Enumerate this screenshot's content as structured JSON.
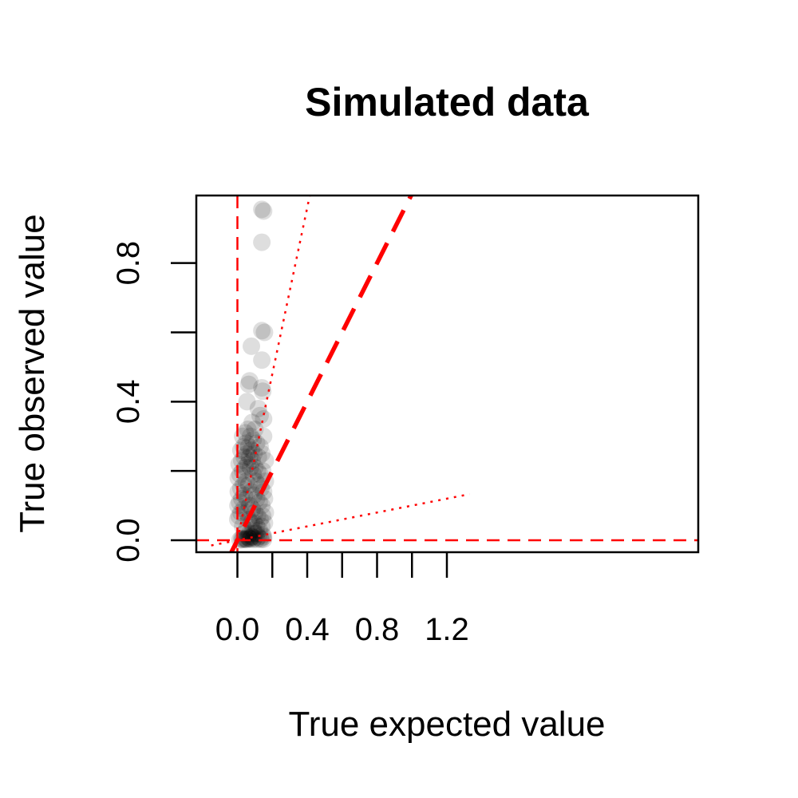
{
  "chart_data": {
    "type": "scatter",
    "title": "Simulated data",
    "xlabel": "True expected value",
    "ylabel": "True observed value",
    "xlim": [
      -0.15,
      1.33
    ],
    "ylim": [
      -0.035,
      1.0
    ],
    "xticks": [
      0.0,
      0.4,
      0.8,
      1.2
    ],
    "xtick_labels": [
      "0.0",
      "0.4",
      "0.8",
      "1.2"
    ],
    "yticks": [
      0.0,
      0.2,
      0.4,
      0.6,
      0.8
    ],
    "ytick_labels": [
      "0.0",
      "",
      "0.4",
      "",
      "0.8"
    ],
    "grid": false,
    "colors": {
      "points": "#000000",
      "reference_lines": "#ff0000"
    },
    "points": {
      "x": [
        0.14,
        0.15,
        0.14,
        0.14,
        0.155,
        0.08,
        0.14,
        0.14,
        0.145,
        0.07,
        0.065,
        0.055,
        0.12,
        0.13,
        0.15,
        0.085,
        0.1,
        0.03,
        0.045,
        0.06,
        0.075,
        0.09,
        0.11,
        0.13,
        0.15,
        0.02,
        0.035,
        0.05,
        0.065,
        0.08,
        0.095,
        0.12,
        0.14,
        0.16,
        0.01,
        0.025,
        0.04,
        0.055,
        0.07,
        0.085,
        0.1,
        0.115,
        0.13,
        0.145,
        0.16,
        0.005,
        0.015,
        0.03,
        0.045,
        0.06,
        0.075,
        0.09,
        0.105,
        0.12,
        0.135,
        0.15,
        0.005,
        0.02,
        0.035,
        0.05,
        0.065,
        0.08,
        0.095,
        0.11,
        0.125,
        0.14,
        0.155,
        0.003,
        0.012,
        0.025,
        0.04,
        0.055,
        0.07,
        0.085,
        0.1,
        0.115,
        0.13,
        0.145,
        0.16,
        0.002,
        0.01,
        0.02,
        0.035,
        0.05,
        0.065,
        0.08,
        0.095,
        0.11,
        0.125,
        0.14,
        0.155,
        0.03,
        0.05,
        0.07,
        0.09,
        0.11,
        0.15,
        0.04,
        0.06,
        0.08,
        0.1,
        0.12,
        0.145,
        0.025,
        0.045,
        0.065,
        0.085,
        0.13,
        0.035,
        0.055,
        0.075,
        0.095,
        0.15,
        0.015,
        0.03,
        0.05,
        0.07,
        0.09,
        0.11,
        0.135
      ],
      "y": [
        0.955,
        0.95,
        0.86,
        0.605,
        0.6,
        0.56,
        0.52,
        0.44,
        0.43,
        0.46,
        0.45,
        0.4,
        0.38,
        0.36,
        0.35,
        0.34,
        0.32,
        0.3,
        0.31,
        0.32,
        0.3,
        0.29,
        0.28,
        0.27,
        0.3,
        0.26,
        0.27,
        0.28,
        0.27,
        0.26,
        0.25,
        0.24,
        0.25,
        0.23,
        0.22,
        0.23,
        0.24,
        0.25,
        0.24,
        0.23,
        0.21,
        0.2,
        0.19,
        0.2,
        0.17,
        0.18,
        0.19,
        0.2,
        0.21,
        0.22,
        0.21,
        0.19,
        0.17,
        0.16,
        0.15,
        0.14,
        0.14,
        0.15,
        0.16,
        0.17,
        0.16,
        0.14,
        0.13,
        0.12,
        0.11,
        0.1,
        0.12,
        0.1,
        0.11,
        0.12,
        0.13,
        0.12,
        0.1,
        0.09,
        0.08,
        0.07,
        0.06,
        0.07,
        0.08,
        0.06,
        0.07,
        0.08,
        0.09,
        0.08,
        0.06,
        0.05,
        0.05,
        0.04,
        0.03,
        0.04,
        0.05,
        0.04,
        0.03,
        0.02,
        0.03,
        0.02,
        0.01,
        0.02,
        0.01,
        0.01,
        0.02,
        0.01,
        0.015,
        0.005,
        0.004,
        0.006,
        0.01,
        0.005,
        0.003,
        0.002,
        0.004,
        0.006,
        0.003,
        0.001,
        0.002,
        0.003,
        0.004,
        0.002,
        0.003,
        0.002
      ]
    },
    "reference_lines": [
      {
        "kind": "vertical",
        "x": 0,
        "style": "dashed"
      },
      {
        "kind": "horizontal",
        "y": 0,
        "style": "dashed"
      },
      {
        "kind": "diagonal",
        "slope": 1,
        "style": "thick-dashed"
      },
      {
        "kind": "diagonal",
        "slope": 2.4,
        "style": "dotted"
      },
      {
        "kind": "diagonal",
        "slope": 0.1,
        "style": "dotted"
      }
    ]
  }
}
